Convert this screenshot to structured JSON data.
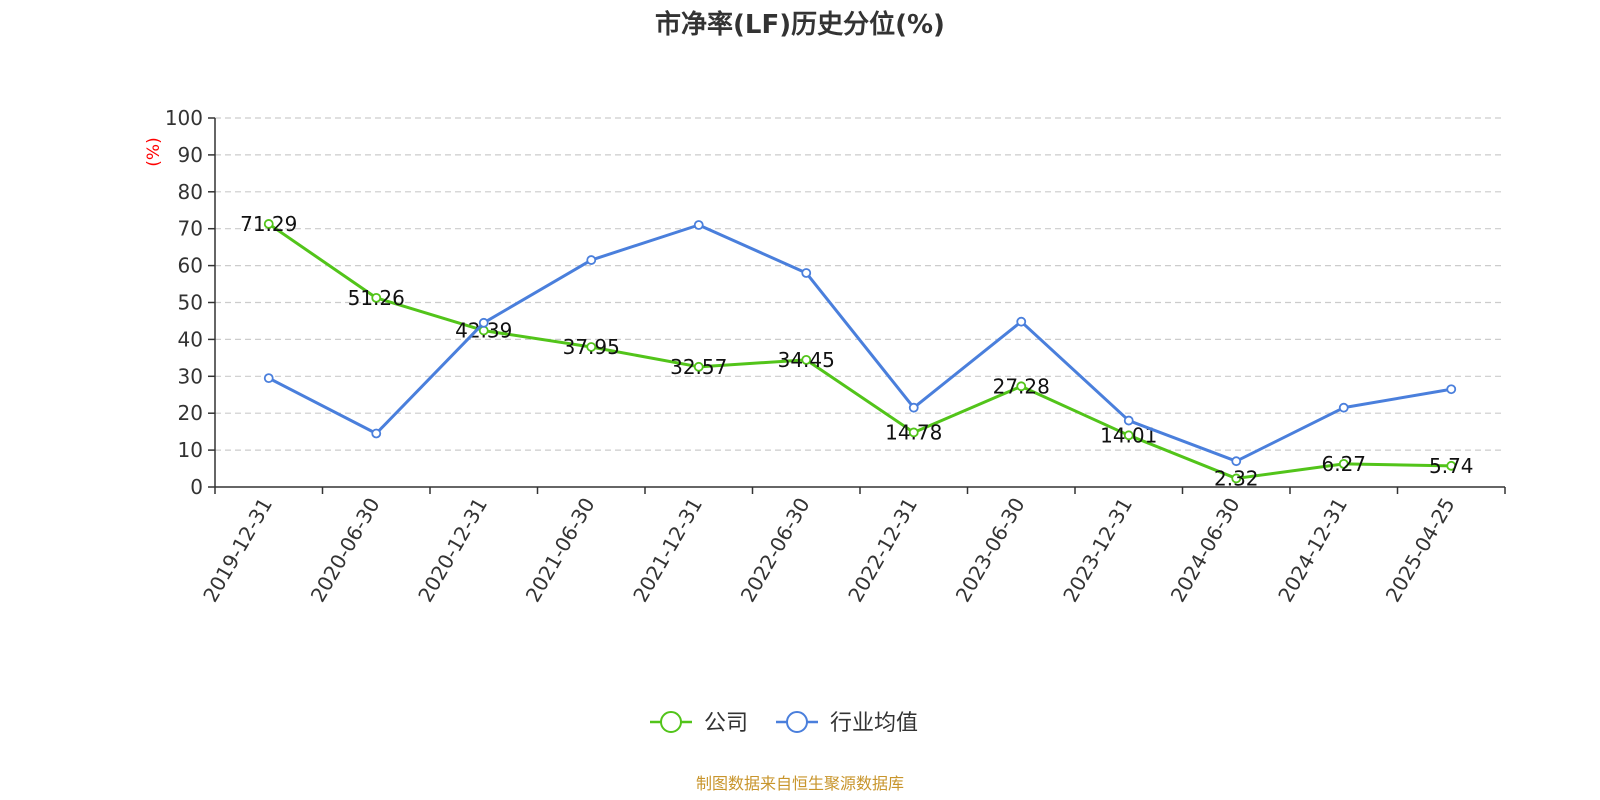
{
  "title": "市净率(LF)历史分位(%)",
  "source_note": "制图数据来自恒生聚源数据库",
  "colors": {
    "company": "#52c41a",
    "industry": "#4a7fdc",
    "source_note": "#c8952c",
    "ylabel": "#ff0000",
    "grid": "#cccccc"
  },
  "chart_data": {
    "type": "line",
    "title": "市净率(LF)历史分位(%)",
    "xlabel": "",
    "ylabel": "(%)",
    "ylim": [
      0,
      100
    ],
    "yticks": [
      0,
      10,
      20,
      30,
      40,
      50,
      60,
      70,
      80,
      90,
      100
    ],
    "grid": true,
    "legend_position": "bottom-center",
    "categories": [
      "2019-12-31",
      "2020-06-30",
      "2020-12-31",
      "2021-06-30",
      "2021-12-31",
      "2022-06-30",
      "2022-12-31",
      "2023-06-30",
      "2023-12-31",
      "2024-06-30",
      "2024-12-31",
      "2025-04-25"
    ],
    "series": [
      {
        "name": "公司",
        "color": "#52c41a",
        "values": [
          71.29,
          51.26,
          42.39,
          37.95,
          32.57,
          34.45,
          14.78,
          27.28,
          14.01,
          2.32,
          6.27,
          5.74
        ],
        "show_labels": true
      },
      {
        "name": "行业均值",
        "color": "#4a7fdc",
        "values": [
          29.5,
          14.5,
          44.5,
          61.5,
          71,
          58,
          21.5,
          44.8,
          18,
          7,
          21.5,
          26.5
        ],
        "show_labels": false
      }
    ]
  }
}
